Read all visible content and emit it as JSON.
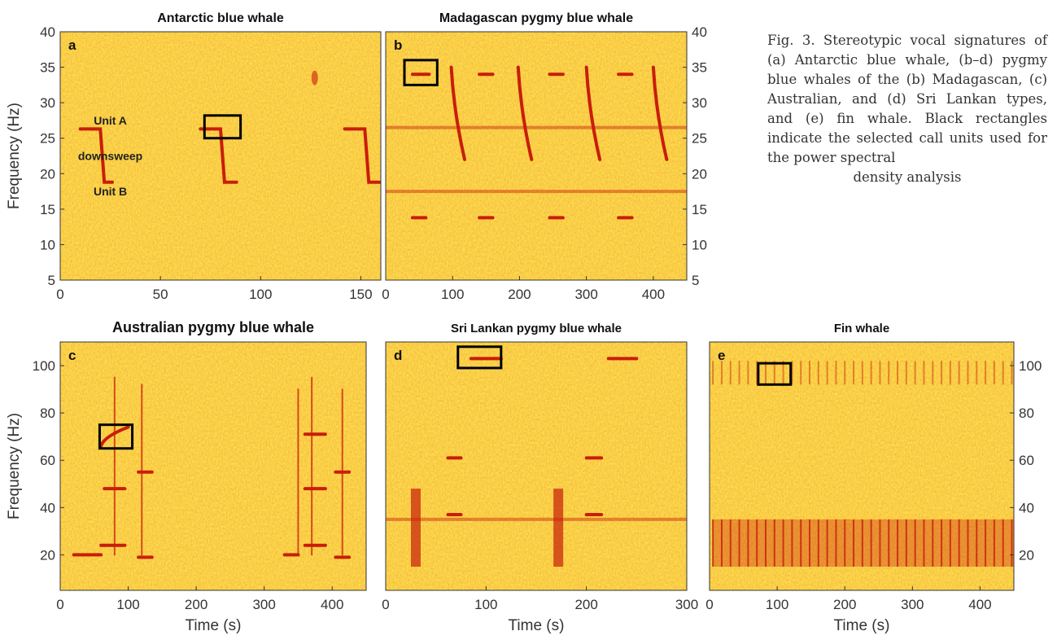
{
  "caption": {
    "text": "Fig. 3. Stereotypic vocal signatures of (a) Antarctic blue whale, (b–d) pygmy blue whales of the (b) Madagascan, (c) Australian, and (d) Sri Lankan types, and (e) fin whale. Black rectangles indicate the selected call units used for the power spectral",
    "last_line": "density analysis"
  },
  "colors": {
    "background": "#fde24a",
    "energy": "#c81e0a",
    "box": "#000000"
  },
  "chart_data": [
    {
      "panel": "a",
      "type": "heatmap",
      "title": "Antarctic blue whale",
      "ylabel": "Frequency (Hz)",
      "xlabel": "",
      "xlim": [
        0,
        160
      ],
      "ylim": [
        5,
        40
      ],
      "xticks": [
        0,
        50,
        100,
        150
      ],
      "yticks": [
        5,
        10,
        15,
        20,
        25,
        30,
        35,
        40
      ],
      "y_axis_side": "left",
      "annotations": [
        {
          "text": "Unit A",
          "x": 25,
          "y": 27.5
        },
        {
          "text": "downsweep",
          "x": 25,
          "y": 22.5
        },
        {
          "text": "Unit B",
          "x": 25,
          "y": 17.5
        }
      ],
      "calls": [
        {
          "kind": "z",
          "t0": 10,
          "t1": 20,
          "t2": 26,
          "f_top": 26.3,
          "f_bot": 18.8
        },
        {
          "kind": "z",
          "t0": 70,
          "t1": 80,
          "t2": 88,
          "f_top": 26.3,
          "f_bot": 18.8
        },
        {
          "kind": "z",
          "t0": 142,
          "t1": 152,
          "t2": 160,
          "f_top": 26.3,
          "f_bot": 18.8
        },
        {
          "kind": "blob",
          "t": 127,
          "f": 33.5
        }
      ],
      "selection": {
        "t": [
          72,
          90
        ],
        "f": [
          25,
          28.2
        ]
      }
    },
    {
      "panel": "b",
      "type": "heatmap",
      "title": "Madagascan pygmy blue whale",
      "ylabel": "",
      "xlabel": "",
      "xlim": [
        0,
        450
      ],
      "ylim": [
        5,
        40
      ],
      "xticks": [
        0,
        100,
        200,
        300,
        400
      ],
      "yticks": [
        5,
        10,
        15,
        20,
        25,
        30,
        35,
        40
      ],
      "y_axis_side": "right",
      "calls": [
        {
          "kind": "tone",
          "t0": 40,
          "t1": 65,
          "f": 34
        },
        {
          "kind": "tone",
          "t0": 140,
          "t1": 160,
          "f": 34
        },
        {
          "kind": "tone",
          "t0": 245,
          "t1": 265,
          "f": 34
        },
        {
          "kind": "tone",
          "t0": 348,
          "t1": 368,
          "f": 34
        },
        {
          "kind": "sweep",
          "t0": 98,
          "t1": 118,
          "f0": 35,
          "f1": 22
        },
        {
          "kind": "sweep",
          "t0": 198,
          "t1": 218,
          "f0": 35,
          "f1": 22
        },
        {
          "kind": "sweep",
          "t0": 300,
          "t1": 320,
          "f0": 35,
          "f1": 22
        },
        {
          "kind": "sweep",
          "t0": 400,
          "t1": 420,
          "f0": 35,
          "f1": 22
        },
        {
          "kind": "tone",
          "t0": 40,
          "t1": 60,
          "f": 13.8
        },
        {
          "kind": "tone",
          "t0": 140,
          "t1": 160,
          "f": 13.8
        },
        {
          "kind": "tone",
          "t0": 245,
          "t1": 265,
          "f": 13.8
        },
        {
          "kind": "tone",
          "t0": 348,
          "t1": 368,
          "f": 13.8
        }
      ],
      "bands": [
        {
          "f": 26.5
        },
        {
          "f": 17.5
        }
      ],
      "selection": {
        "t": [
          28,
          77
        ],
        "f": [
          32.5,
          36
        ]
      }
    },
    {
      "panel": "c",
      "type": "heatmap",
      "title": "Australian pygmy blue whale",
      "ylabel": "Frequency (Hz)",
      "xlabel": "Time (s)",
      "xlim": [
        0,
        450
      ],
      "ylim": [
        5,
        110
      ],
      "xticks": [
        0,
        100,
        200,
        300,
        400
      ],
      "yticks": [
        20,
        40,
        60,
        80,
        100
      ],
      "y_axis_side": "left",
      "calls": [
        {
          "kind": "tone",
          "t0": 20,
          "t1": 60,
          "f": 20
        },
        {
          "kind": "tone",
          "t0": 60,
          "t1": 95,
          "f": 24
        },
        {
          "kind": "tone",
          "t0": 115,
          "t1": 135,
          "f": 19
        },
        {
          "kind": "sweep",
          "t0": 60,
          "t1": 100,
          "f0": 66,
          "f1": 74
        },
        {
          "kind": "vline",
          "t": 80,
          "f0": 20,
          "f1": 95
        },
        {
          "kind": "vline",
          "t": 120,
          "f0": 20,
          "f1": 92
        },
        {
          "kind": "tone",
          "t0": 65,
          "t1": 95,
          "f": 48
        },
        {
          "kind": "tone",
          "t0": 115,
          "t1": 135,
          "f": 55
        },
        {
          "kind": "tone",
          "t0": 330,
          "t1": 350,
          "f": 20
        },
        {
          "kind": "tone",
          "t0": 360,
          "t1": 390,
          "f": 24
        },
        {
          "kind": "tone",
          "t0": 405,
          "t1": 425,
          "f": 19
        },
        {
          "kind": "vline",
          "t": 350,
          "f0": 20,
          "f1": 90
        },
        {
          "kind": "vline",
          "t": 370,
          "f0": 20,
          "f1": 95
        },
        {
          "kind": "vline",
          "t": 415,
          "f0": 20,
          "f1": 90
        },
        {
          "kind": "tone",
          "t0": 360,
          "t1": 390,
          "f": 48
        },
        {
          "kind": "tone",
          "t0": 360,
          "t1": 390,
          "f": 71
        },
        {
          "kind": "tone",
          "t0": 405,
          "t1": 425,
          "f": 55
        }
      ],
      "selection": {
        "t": [
          58,
          106
        ],
        "f": [
          65,
          75
        ]
      }
    },
    {
      "panel": "d",
      "type": "heatmap",
      "title": "Sri Lankan pygmy blue whale",
      "ylabel": "",
      "xlabel": "Time (s)",
      "xlim": [
        0,
        300
      ],
      "ylim": [
        5,
        110
      ],
      "xticks": [
        0,
        100,
        200,
        300
      ],
      "yticks": [
        20,
        40,
        60,
        80,
        100
      ],
      "y_axis_side": "none",
      "calls": [
        {
          "kind": "tone",
          "t0": 85,
          "t1": 115,
          "f": 103
        },
        {
          "kind": "tone",
          "t0": 222,
          "t1": 250,
          "f": 103
        },
        {
          "kind": "tone",
          "t0": 62,
          "t1": 75,
          "f": 61
        },
        {
          "kind": "tone",
          "t0": 200,
          "t1": 215,
          "f": 61
        },
        {
          "kind": "tone",
          "t0": 62,
          "t1": 75,
          "f": 37
        },
        {
          "kind": "tone",
          "t0": 200,
          "t1": 215,
          "f": 37
        },
        {
          "kind": "burst",
          "t": 30,
          "f0": 15,
          "f1": 48
        },
        {
          "kind": "burst",
          "t": 172,
          "f0": 15,
          "f1": 48
        }
      ],
      "bands": [
        {
          "f": 35
        }
      ],
      "selection": {
        "t": [
          72,
          115
        ],
        "f": [
          99,
          108
        ]
      }
    },
    {
      "panel": "e",
      "type": "heatmap",
      "title": "Fin whale",
      "ylabel": "",
      "xlabel": "Time (s)",
      "xlim": [
        0,
        450
      ],
      "ylim": [
        5,
        110
      ],
      "xticks": [
        0,
        100,
        200,
        300,
        400
      ],
      "yticks": [
        20,
        40,
        60,
        80,
        100
      ],
      "y_axis_side": "right",
      "calls": [
        {
          "kind": "pulse_train",
          "t0": 5,
          "t1": 450,
          "interval": 13,
          "f0": 15,
          "f1": 35
        },
        {
          "kind": "pulse_train_faint",
          "t0": 5,
          "t1": 450,
          "interval": 13,
          "f0": 92,
          "f1": 102
        }
      ],
      "selection": {
        "t": [
          72,
          120
        ],
        "f": [
          92,
          101
        ]
      }
    }
  ]
}
